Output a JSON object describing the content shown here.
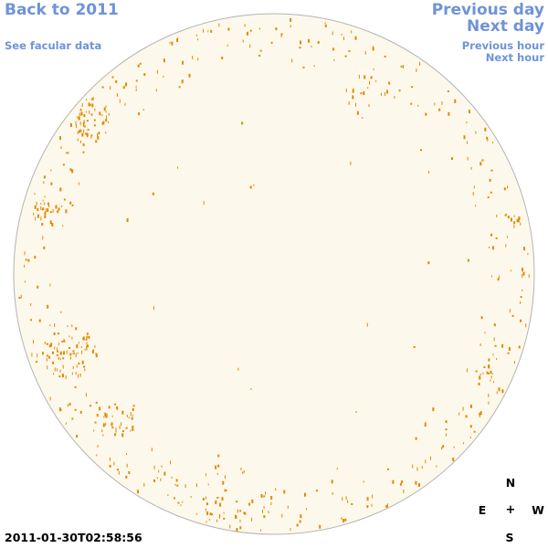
{
  "nav": {
    "back_label": "Back to 2011",
    "facular_label": "See facular data",
    "prev_day_label": "Previous day",
    "next_day_label": "Next day",
    "prev_hour_label": "Previous hour",
    "next_hour_label": "Next hour"
  },
  "timestamp": "2011-01-30T02:58:56",
  "compass": {
    "north": "N",
    "east": "E",
    "center": "+",
    "west": "W",
    "south": "S"
  },
  "colors": {
    "link": "#6f93d8",
    "disk_fill": "#fdf8ec",
    "disk_border": "#b4b4b4",
    "facula": "#e08a00"
  },
  "facula_count_shown": 760
}
